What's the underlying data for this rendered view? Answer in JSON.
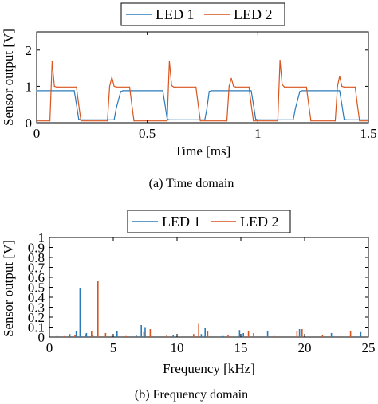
{
  "charts": [
    {
      "caption": "(a) Time domain",
      "chart_data": {
        "type": "line",
        "xlabel": "Time [ms]",
        "ylabel": "Sensor output [V]",
        "xlim": [
          0,
          1.5
        ],
        "ylim": [
          0,
          2.5
        ],
        "xticks": [
          "0",
          "0.5",
          "1",
          "1.5"
        ],
        "yticks": [
          "0",
          "1",
          "2"
        ],
        "legend": "top-center",
        "series": [
          {
            "name": "LED 1",
            "color": "#2b7bba",
            "x": [
              0.0,
              0.17,
              0.18,
              0.19,
              0.2,
              0.21,
              0.35,
              0.36,
              0.38,
              0.39,
              0.57,
              0.58,
              0.59,
              0.6,
              0.61,
              0.76,
              0.77,
              0.78,
              0.79,
              0.97,
              0.98,
              0.99,
              1.0,
              1.01,
              1.16,
              1.17,
              1.19,
              1.2,
              1.37,
              1.38,
              1.39,
              1.4,
              1.41,
              1.5
            ],
            "y": [
              0.88,
              0.88,
              0.5,
              0.1,
              0.08,
              0.08,
              0.08,
              0.4,
              0.86,
              0.88,
              0.88,
              0.5,
              0.1,
              0.08,
              0.08,
              0.08,
              0.4,
              0.86,
              0.88,
              0.88,
              0.5,
              0.1,
              0.08,
              0.08,
              0.08,
              0.4,
              0.86,
              0.88,
              0.88,
              0.5,
              0.1,
              0.08,
              0.08,
              0.08
            ]
          },
          {
            "name": "LED 2",
            "color": "#d9541e",
            "x": [
              0.0,
              0.06,
              0.07,
              0.08,
              0.09,
              0.1,
              0.18,
              0.19,
              0.2,
              0.32,
              0.33,
              0.34,
              0.35,
              0.36,
              0.42,
              0.43,
              0.44,
              0.59,
              0.6,
              0.61,
              0.62,
              0.63,
              0.72,
              0.73,
              0.74,
              0.86,
              0.87,
              0.88,
              0.89,
              0.9,
              0.96,
              0.97,
              0.98,
              1.09,
              1.1,
              1.11,
              1.12,
              1.13,
              1.22,
              1.23,
              1.24,
              1.35,
              1.36,
              1.37,
              1.38,
              1.39,
              1.44,
              1.45,
              1.46,
              1.5
            ],
            "y": [
              0.05,
              0.05,
              1.68,
              1.0,
              0.98,
              0.98,
              0.98,
              0.5,
              0.05,
              0.05,
              1.0,
              1.25,
              1.0,
              0.98,
              0.98,
              0.5,
              0.05,
              0.05,
              1.7,
              1.02,
              0.98,
              0.98,
              0.98,
              0.5,
              0.05,
              0.05,
              1.0,
              1.22,
              1.0,
              0.98,
              0.98,
              0.5,
              0.05,
              0.05,
              1.72,
              1.05,
              0.98,
              0.98,
              0.98,
              0.5,
              0.05,
              0.05,
              1.0,
              1.28,
              1.0,
              0.98,
              0.98,
              0.5,
              0.05,
              0.05
            ]
          }
        ]
      }
    },
    {
      "caption": "(b) Frequency domain",
      "chart_data": {
        "type": "bar",
        "xlabel": "Frequency [kHz]",
        "ylabel": "Sensor output [V]",
        "xlim": [
          0,
          25
        ],
        "ylim": [
          0,
          1
        ],
        "xticks": [
          "0",
          "5",
          "10",
          "15",
          "20",
          "25"
        ],
        "yticks": [
          "0",
          "0.1",
          "0.2",
          "0.3",
          "0.4",
          "0.5",
          "0.6",
          "0.7",
          "0.8",
          "0.9",
          "1"
        ],
        "legend": "top-center",
        "series": [
          {
            "name": "LED 1",
            "color": "#2b7bba",
            "x": [
              0.6,
              1.6,
              2.1,
              2.4,
              2.9,
              3.4,
              4.9,
              5.3,
              6.8,
              7.2,
              7.5,
              9.7,
              11.9,
              12.2,
              13.6,
              14.9,
              15.2,
              17.1,
              19.6,
              22.1,
              24.4
            ],
            "y": [
              0.01,
              0.03,
              0.06,
              0.49,
              0.04,
              0.02,
              0.01,
              0.06,
              0.02,
              0.12,
              0.1,
              0.02,
              0.03,
              0.09,
              0.01,
              0.07,
              0.04,
              0.06,
              0.08,
              0.04,
              0.05
            ]
          },
          {
            "name": "LED 2",
            "color": "#d9541e",
            "x": [
              1.2,
              2.0,
              2.8,
              3.3,
              3.8,
              4.4,
              6.0,
              7.4,
              7.9,
              9.2,
              11.3,
              11.7,
              12.4,
              14.0,
              15.6,
              16.0,
              17.6,
              19.4,
              19.8,
              21.4,
              23.6
            ],
            "y": [
              0.01,
              0.02,
              0.03,
              0.06,
              0.56,
              0.04,
              0.01,
              0.05,
              0.08,
              0.02,
              0.03,
              0.14,
              0.06,
              0.02,
              0.06,
              0.04,
              0.01,
              0.06,
              0.08,
              0.02,
              0.06
            ]
          }
        ]
      }
    }
  ]
}
